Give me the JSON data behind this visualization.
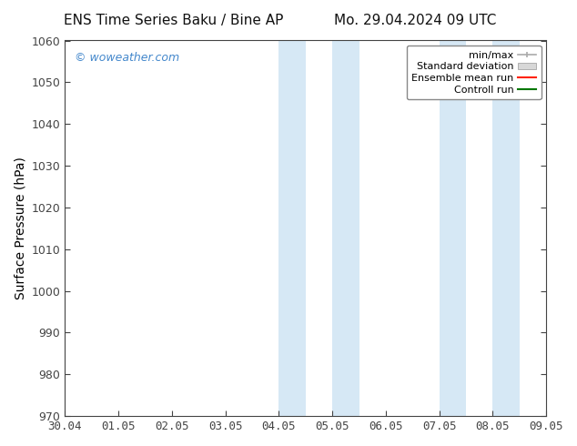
{
  "title_left": "ENS Time Series Baku / Bine AP",
  "title_right": "Mo. 29.04.2024 09 UTC",
  "ylabel": "Surface Pressure (hPa)",
  "ylim": [
    970,
    1060
  ],
  "yticks": [
    970,
    980,
    990,
    1000,
    1010,
    1020,
    1030,
    1040,
    1050,
    1060
  ],
  "xtick_labels": [
    "30.04",
    "01.05",
    "02.05",
    "03.05",
    "04.05",
    "05.05",
    "06.05",
    "07.05",
    "08.05",
    "09.05"
  ],
  "xtick_positions": [
    0,
    1,
    2,
    3,
    4,
    5,
    6,
    7,
    8,
    9
  ],
  "shaded_bands": [
    {
      "x_start": 4.0,
      "x_end": 4.5,
      "color": "#d6e8f5"
    },
    {
      "x_start": 5.0,
      "x_end": 5.5,
      "color": "#d6e8f5"
    },
    {
      "x_start": 7.0,
      "x_end": 7.5,
      "color": "#d6e8f5"
    },
    {
      "x_start": 8.0,
      "x_end": 8.5,
      "color": "#d6e8f5"
    }
  ],
  "watermark_text": "© woweather.com",
  "watermark_color": "#4488cc",
  "background_color": "#ffffff",
  "legend_items": [
    {
      "label": "min/max",
      "color": "#aaaaaa",
      "type": "errbar"
    },
    {
      "label": "Standard deviation",
      "color": "#cccccc",
      "type": "fill"
    },
    {
      "label": "Ensemble mean run",
      "color": "#ff0000",
      "type": "line"
    },
    {
      "label": "Controll run",
      "color": "#008800",
      "type": "line"
    }
  ],
  "title_fontsize": 11,
  "axis_label_fontsize": 10,
  "tick_fontsize": 9,
  "legend_fontsize": 8,
  "watermark_fontsize": 9
}
